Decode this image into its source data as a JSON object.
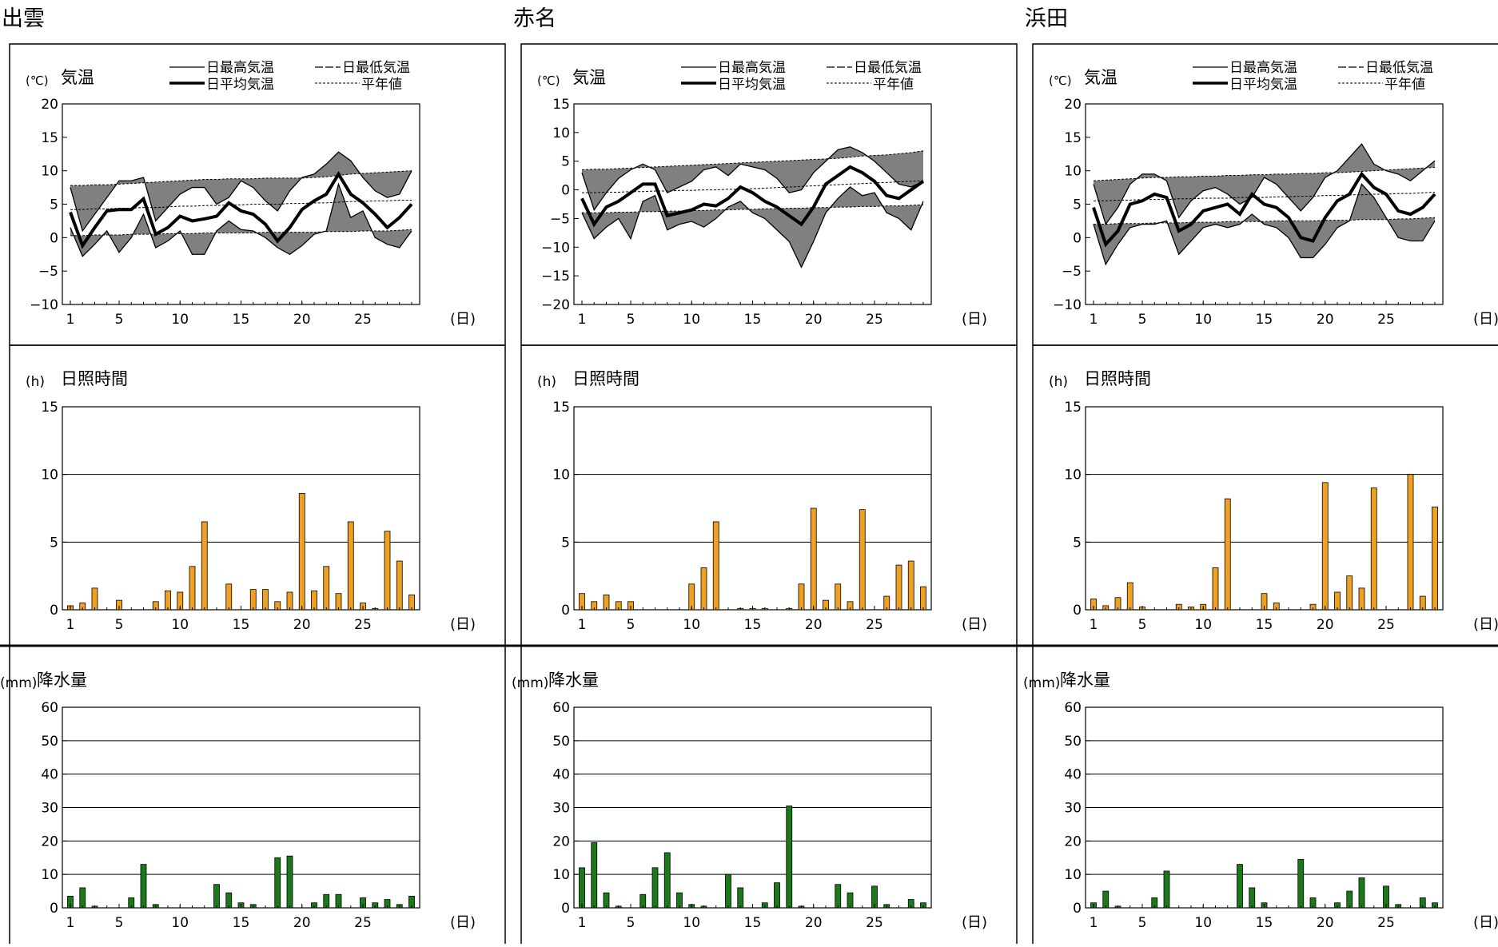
{
  "common": {
    "temp_title": "気温",
    "temp_unit": "(℃)",
    "sun_title": "日照時間",
    "sun_unit": "(h)",
    "precip_title": "降水量",
    "precip_unit": "(mm)",
    "day_unit": "(日)",
    "x_ticks": [
      "1",
      "5",
      "10",
      "15",
      "20",
      "25"
    ],
    "legend": {
      "max": "日最高気温",
      "min": "日最低気温",
      "avg": "日平均気温",
      "normal": "平年値"
    },
    "colors": {
      "sunshine_bar": "#f0a020",
      "precip_bar": "#1a7a1a",
      "deviation_fill": "#808080"
    }
  },
  "chart_data": [
    {
      "station": "出雲",
      "temperature": {
        "type": "line",
        "ylim": [
          -10,
          20
        ],
        "yticks": [
          20,
          15,
          10,
          5,
          0,
          -5,
          -10
        ],
        "max": [
          7.5,
          1.0,
          3.5,
          6.0,
          8.5,
          8.5,
          9.0,
          2.5,
          4.5,
          6.5,
          7.5,
          7.5,
          5.0,
          6.0,
          8.5,
          7.5,
          5.5,
          4.0,
          7.0,
          9.0,
          9.5,
          11.0,
          12.8,
          11.5,
          9.0,
          7.0,
          6.0,
          6.5,
          10.0
        ],
        "avg": [
          3.8,
          -1.2,
          1.5,
          4.0,
          4.2,
          4.2,
          5.8,
          0.5,
          1.5,
          3.2,
          2.5,
          2.8,
          3.2,
          5.2,
          4.0,
          3.5,
          2.0,
          -0.5,
          1.5,
          4.2,
          5.5,
          6.5,
          9.5,
          6.5,
          5.2,
          3.5,
          1.5,
          3.0,
          5.0
        ],
        "min": [
          1.5,
          -2.8,
          -1.0,
          1.0,
          -2.2,
          0.0,
          3.5,
          -1.5,
          -0.5,
          1.0,
          -2.5,
          -2.5,
          1.0,
          2.5,
          1.2,
          1.0,
          0.0,
          -1.5,
          -2.5,
          -1.2,
          0.5,
          1.0,
          8.0,
          3.0,
          4.0,
          0.0,
          -1.0,
          -1.5,
          1.0
        ],
        "normal_max": [
          7.8,
          7.8,
          7.9,
          7.9,
          8.0,
          8.1,
          8.2,
          8.3,
          8.4,
          8.5,
          8.6,
          8.7,
          8.7,
          8.8,
          8.8,
          8.8,
          8.9,
          8.9,
          8.9,
          8.9,
          9.0,
          9.1,
          9.3,
          9.5,
          9.6,
          9.7,
          9.8,
          9.9,
          10.0
        ],
        "normal_avg": [
          4.2,
          4.2,
          4.3,
          4.3,
          4.4,
          4.4,
          4.5,
          4.5,
          4.6,
          4.7,
          4.7,
          4.8,
          4.8,
          4.9,
          4.9,
          5.0,
          5.0,
          5.0,
          5.1,
          5.1,
          5.2,
          5.2,
          5.3,
          5.4,
          5.4,
          5.5,
          5.5,
          5.6,
          5.6
        ],
        "normal_min": [
          0.3,
          0.3,
          0.4,
          0.4,
          0.4,
          0.5,
          0.5,
          0.5,
          0.6,
          0.6,
          0.6,
          0.7,
          0.7,
          0.7,
          0.7,
          0.7,
          0.8,
          0.8,
          0.8,
          0.8,
          0.8,
          0.9,
          0.9,
          0.9,
          1.0,
          1.0,
          1.0,
          1.1,
          1.2
        ]
      },
      "sunshine": {
        "type": "bar",
        "ylim": [
          0,
          15
        ],
        "yticks": [
          15,
          10,
          5,
          0
        ],
        "values": [
          0.3,
          0.5,
          1.6,
          0.0,
          0.7,
          0.0,
          0.0,
          0.6,
          1.4,
          1.3,
          3.2,
          6.5,
          0.0,
          1.9,
          0.0,
          1.5,
          1.5,
          0.6,
          1.3,
          8.6,
          1.4,
          3.2,
          1.2,
          6.5,
          0.5,
          0.1,
          5.8,
          3.6,
          1.1
        ]
      },
      "precipitation": {
        "type": "bar",
        "ylim": [
          0,
          60
        ],
        "yticks": [
          60,
          50,
          40,
          30,
          20,
          10,
          0
        ],
        "values": [
          3.5,
          6.0,
          0.5,
          0.0,
          0.0,
          3.0,
          13.0,
          1.0,
          0.0,
          0.0,
          0.0,
          0.0,
          7.0,
          4.5,
          1.5,
          1.0,
          0.0,
          15.0,
          15.5,
          0.0,
          1.5,
          4.0,
          4.0,
          0.0,
          3.0,
          1.5,
          2.5,
          1.0,
          3.5
        ]
      }
    },
    {
      "station": "赤名",
      "temperature": {
        "type": "line",
        "ylim": [
          -20,
          15
        ],
        "yticks": [
          15,
          10,
          5,
          0,
          -5,
          -10,
          -15,
          -20
        ],
        "max": [
          3.0,
          -3.5,
          -0.5,
          2.0,
          3.5,
          4.5,
          3.5,
          -0.5,
          0.5,
          1.5,
          3.5,
          4.0,
          2.5,
          4.5,
          4.0,
          3.5,
          2.0,
          -0.5,
          0.0,
          3.0,
          5.0,
          7.0,
          7.5,
          6.5,
          5.0,
          3.0,
          1.0,
          0.5,
          1.5
        ],
        "avg": [
          -1.5,
          -6.0,
          -3.0,
          -2.0,
          -0.5,
          1.0,
          1.0,
          -4.5,
          -4.0,
          -3.5,
          -2.5,
          -2.8,
          -1.5,
          0.5,
          -0.5,
          -2.0,
          -3.0,
          -4.5,
          -6.0,
          -3.0,
          1.0,
          2.5,
          4.0,
          3.0,
          1.5,
          -1.0,
          -1.5,
          0.0,
          1.5
        ],
        "min": [
          -4.0,
          -8.5,
          -6.5,
          -5.0,
          -8.5,
          -2.0,
          -1.0,
          -7.0,
          -6.0,
          -5.5,
          -6.5,
          -5.0,
          -3.0,
          -2.0,
          -4.0,
          -5.0,
          -7.0,
          -9.0,
          -13.5,
          -9.0,
          -4.0,
          -1.5,
          0.5,
          -1.0,
          -0.5,
          -4.0,
          -5.0,
          -7.0,
          -2.0
        ],
        "normal_max": [
          3.5,
          3.6,
          3.6,
          3.7,
          3.8,
          3.9,
          4.0,
          4.1,
          4.2,
          4.3,
          4.4,
          4.5,
          4.6,
          4.7,
          4.8,
          4.9,
          5.0,
          5.1,
          5.2,
          5.3,
          5.4,
          5.5,
          5.7,
          5.9,
          6.0,
          6.1,
          6.3,
          6.5,
          6.8
        ],
        "normal_avg": [
          -0.5,
          -0.5,
          -0.4,
          -0.4,
          -0.3,
          -0.3,
          -0.2,
          -0.2,
          -0.1,
          -0.1,
          0.0,
          0.0,
          0.1,
          0.1,
          0.2,
          0.3,
          0.4,
          0.5,
          0.6,
          0.7,
          0.8,
          0.9,
          1.0,
          1.1,
          1.2,
          1.3,
          1.4,
          1.5,
          1.6
        ],
        "normal_min": [
          -4.0,
          -4.0,
          -4.0,
          -3.9,
          -3.9,
          -3.8,
          -3.8,
          -3.7,
          -3.7,
          -3.6,
          -3.6,
          -3.5,
          -3.5,
          -3.4,
          -3.4,
          -3.3,
          -3.3,
          -3.2,
          -3.2,
          -3.1,
          -3.1,
          -3.0,
          -3.0,
          -2.9,
          -2.9,
          -2.8,
          -2.8,
          -2.7,
          -2.6
        ]
      },
      "sunshine": {
        "type": "bar",
        "ylim": [
          0,
          15
        ],
        "yticks": [
          15,
          10,
          5,
          0
        ],
        "values": [
          1.2,
          0.6,
          1.1,
          0.6,
          0.6,
          0.0,
          0.0,
          0.0,
          0.0,
          1.9,
          3.1,
          6.5,
          0.0,
          0.1,
          0.1,
          0.1,
          0.0,
          0.1,
          1.9,
          7.5,
          0.7,
          1.9,
          0.6,
          7.4,
          0.0,
          1.0,
          3.3,
          3.6,
          1.7
        ]
      },
      "precipitation": {
        "type": "bar",
        "ylim": [
          0,
          60
        ],
        "yticks": [
          60,
          50,
          40,
          30,
          20,
          10,
          0
        ],
        "values": [
          12.0,
          19.5,
          4.5,
          0.5,
          0.0,
          4.0,
          12.0,
          16.5,
          4.5,
          1.0,
          0.5,
          0.0,
          10.0,
          6.0,
          0.0,
          1.5,
          7.5,
          30.5,
          0.5,
          0.0,
          0.0,
          7.0,
          4.5,
          0.0,
          6.5,
          1.0,
          0.0,
          2.5,
          1.5
        ]
      }
    },
    {
      "station": "浜田",
      "temperature": {
        "type": "line",
        "ylim": [
          -10,
          20
        ],
        "yticks": [
          20,
          15,
          10,
          5,
          0,
          -5,
          -10
        ],
        "max": [
          8.0,
          2.0,
          4.5,
          8.0,
          9.5,
          9.5,
          8.5,
          3.0,
          5.5,
          7.0,
          7.5,
          6.5,
          5.0,
          6.0,
          9.0,
          8.0,
          6.0,
          4.0,
          6.0,
          9.0,
          10.0,
          12.0,
          14.0,
          11.0,
          10.0,
          9.5,
          8.5,
          10.0,
          11.5
        ],
        "avg": [
          4.5,
          -1.0,
          1.0,
          5.0,
          5.5,
          6.5,
          6.0,
          1.0,
          2.0,
          4.0,
          4.5,
          5.0,
          3.5,
          6.5,
          5.0,
          4.5,
          3.0,
          0.0,
          -0.5,
          3.0,
          5.5,
          6.5,
          9.5,
          7.5,
          6.5,
          4.0,
          3.5,
          4.5,
          6.5
        ],
        "min": [
          2.0,
          -4.0,
          -1.0,
          1.5,
          2.0,
          2.0,
          2.5,
          -2.5,
          -0.5,
          1.5,
          2.0,
          1.5,
          2.0,
          3.5,
          2.0,
          1.5,
          0.0,
          -3.0,
          -3.0,
          -1.0,
          1.5,
          2.5,
          8.0,
          6.0,
          3.0,
          0.0,
          -0.5,
          -0.5,
          2.5
        ],
        "normal_max": [
          8.5,
          8.6,
          8.7,
          8.8,
          8.9,
          9.0,
          9.0,
          9.1,
          9.1,
          9.2,
          9.2,
          9.3,
          9.3,
          9.4,
          9.4,
          9.5,
          9.5,
          9.6,
          9.6,
          9.7,
          9.7,
          9.8,
          9.9,
          10.0,
          10.1,
          10.2,
          10.3,
          10.4,
          10.5
        ],
        "normal_avg": [
          5.5,
          5.5,
          5.6,
          5.6,
          5.7,
          5.7,
          5.7,
          5.8,
          5.8,
          5.9,
          5.9,
          5.9,
          6.0,
          6.0,
          6.0,
          6.1,
          6.1,
          6.2,
          6.2,
          6.3,
          6.3,
          6.4,
          6.4,
          6.5,
          6.5,
          6.6,
          6.6,
          6.7,
          6.8
        ],
        "normal_min": [
          2.0,
          2.0,
          2.1,
          2.1,
          2.1,
          2.2,
          2.2,
          2.2,
          2.3,
          2.3,
          2.3,
          2.4,
          2.4,
          2.4,
          2.4,
          2.5,
          2.5,
          2.5,
          2.5,
          2.6,
          2.6,
          2.6,
          2.7,
          2.7,
          2.7,
          2.8,
          2.8,
          2.9,
          3.0
        ]
      },
      "sunshine": {
        "type": "bar",
        "ylim": [
          0,
          15
        ],
        "yticks": [
          15,
          10,
          5,
          0
        ],
        "values": [
          0.8,
          0.3,
          0.9,
          2.0,
          0.2,
          0.0,
          0.0,
          0.4,
          0.2,
          0.4,
          3.1,
          8.2,
          0.0,
          0.0,
          1.2,
          0.5,
          0.0,
          0.0,
          0.4,
          9.4,
          1.3,
          2.5,
          1.6,
          9.0,
          0.0,
          0.0,
          10.0,
          1.0,
          7.6
        ]
      },
      "precipitation": {
        "type": "bar",
        "ylim": [
          0,
          60
        ],
        "yticks": [
          60,
          50,
          40,
          30,
          20,
          10,
          0
        ],
        "values": [
          1.5,
          5.0,
          0.5,
          0.0,
          0.0,
          3.0,
          11.0,
          0.0,
          0.0,
          0.0,
          0.0,
          0.0,
          13.0,
          6.0,
          1.5,
          0.0,
          0.0,
          14.5,
          3.0,
          0.0,
          1.5,
          5.0,
          9.0,
          0.0,
          6.5,
          1.0,
          0.0,
          3.0,
          1.5
        ]
      }
    }
  ]
}
